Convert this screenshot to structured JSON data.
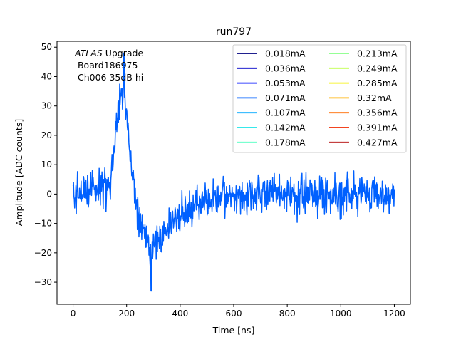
{
  "chart_data": {
    "type": "line",
    "title": "run797",
    "xlabel": "Time [ns]",
    "ylabel": "Amplitude [ADC counts]",
    "xlim": [
      -60,
      1260
    ],
    "ylim": [
      -37.5,
      52
    ],
    "xticks": [
      0,
      200,
      400,
      600,
      800,
      1000,
      1200
    ],
    "yticks": [
      -30,
      -20,
      -10,
      0,
      10,
      20,
      30,
      40,
      50
    ],
    "xtick_labels": [
      "0",
      "200",
      "400",
      "600",
      "800",
      "1000",
      "1200"
    ],
    "ytick_labels": [
      "−30",
      "−20",
      "−10",
      "0",
      "10",
      "20",
      "30",
      "40",
      "50"
    ],
    "grid": false,
    "legend_position": "top-right",
    "legend_columns": 2,
    "annotation": {
      "italic_part": "ATLAS",
      "rest": " Upgrade",
      "line2": " Board186975",
      "line3": " Ch006 35dB hi"
    },
    "series": [
      {
        "name": "0.018mA",
        "color": "#00007f"
      },
      {
        "name": "0.036mA",
        "color": "#0000c8"
      },
      {
        "name": "0.053mA",
        "color": "#0010ff"
      },
      {
        "name": "0.071mA",
        "color": "#0060ff"
      },
      {
        "name": "0.107mA",
        "color": "#00a8ff"
      },
      {
        "name": "0.142mA",
        "color": "#1ae4e8"
      },
      {
        "name": "0.178mA",
        "color": "#4dffc0"
      },
      {
        "name": "0.213mA",
        "color": "#86ff86"
      },
      {
        "name": "0.249mA",
        "color": "#c0ff4d"
      },
      {
        "name": "0.285mA",
        "color": "#f4f000"
      },
      {
        "name": "0.32mA",
        "color": "#ffb000"
      },
      {
        "name": "0.356mA",
        "color": "#ff6c00"
      },
      {
        "name": "0.391mA",
        "color": "#f02a00"
      },
      {
        "name": "0.427mA",
        "color": "#b00000"
      }
    ],
    "waveform": {
      "series_name": "0.071mA",
      "color": "#0060ff",
      "x_start": 0,
      "x_end": 1200,
      "x_step": 1.5,
      "shape_points": [
        [
          0,
          0
        ],
        [
          140,
          3
        ],
        [
          165,
          25
        ],
        [
          185,
          35
        ],
        [
          200,
          28
        ],
        [
          215,
          10
        ],
        [
          235,
          -2
        ],
        [
          255,
          -8
        ],
        [
          275,
          -17
        ],
        [
          290,
          -21
        ],
        [
          320,
          -15
        ],
        [
          360,
          -11
        ],
        [
          400,
          -7
        ],
        [
          460,
          -3
        ],
        [
          520,
          -2
        ],
        [
          600,
          -1
        ],
        [
          700,
          0
        ],
        [
          1200,
          0
        ]
      ],
      "peak_y": 48,
      "min_y": -33,
      "noise_amplitude": 4.5
    }
  }
}
